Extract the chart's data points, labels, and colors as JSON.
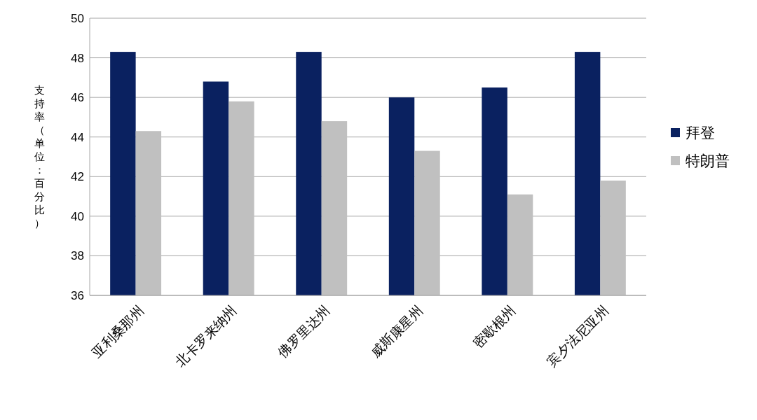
{
  "chart_data": {
    "type": "bar",
    "ylabel": "支持率（单位：百分比）",
    "categories": [
      "亚利桑那州",
      "北卡罗来纳州",
      "佛罗里达州",
      "威斯康星州",
      "密歇根州",
      "宾夕法尼亚州"
    ],
    "series": [
      {
        "name": "拜登",
        "color": "#0a2160",
        "values": [
          48.3,
          46.8,
          48.3,
          46.0,
          46.5,
          48.3
        ]
      },
      {
        "name": "特朗普",
        "color": "#c0c0c0",
        "values": [
          44.3,
          45.8,
          44.8,
          43.3,
          41.1,
          41.8
        ]
      }
    ],
    "ylim": [
      36,
      50
    ],
    "yticks": [
      36,
      38,
      40,
      42,
      44,
      46,
      48,
      50
    ],
    "grid": "y",
    "legend": "right"
  }
}
